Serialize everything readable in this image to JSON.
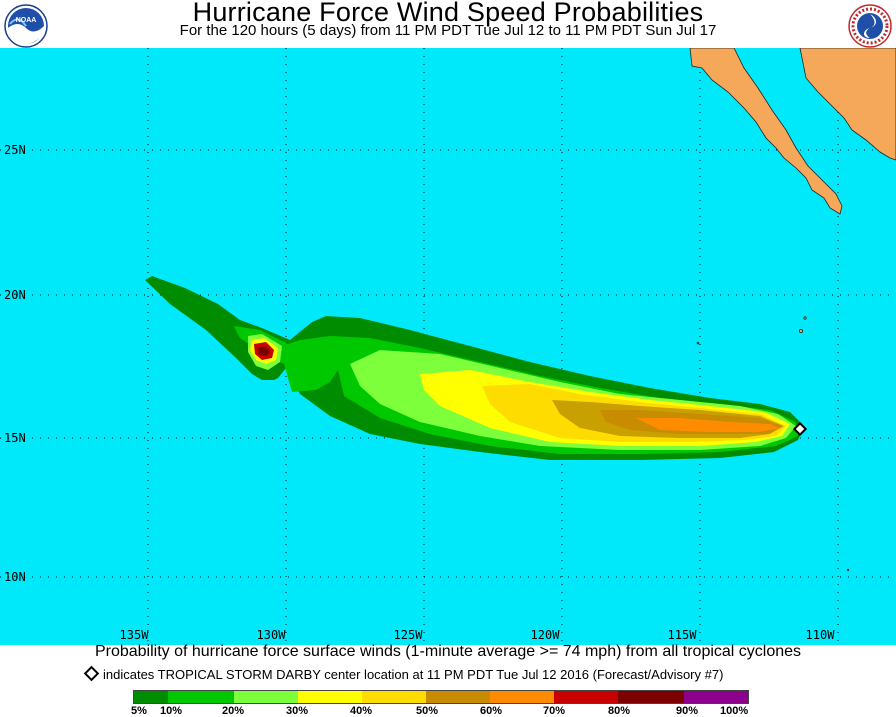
{
  "header": {
    "title": "Hurricane Force Wind Speed Probabilities",
    "subtitle": "For the 120 hours (5 days) from 11 PM PDT Tue Jul 12 to 11 PM PDT Sun Jul 17",
    "left_logo_text": "NOAA",
    "right_logo_text": "NATIONAL WEATHER SERVICE"
  },
  "map": {
    "ocean_color": "#00e9fb",
    "land_color": "#f5a75a",
    "lat_labels": [
      "25N",
      "20N",
      "15N",
      "10N"
    ],
    "lon_labels": [
      "135W",
      "130W",
      "125W",
      "120W",
      "115W",
      "110W"
    ],
    "storm_marker_icon": "diamond-icon"
  },
  "footer": {
    "caption": "Probability of hurricane force surface winds (1-minute average >= 74 mph) from all tropical cyclones",
    "note": "indicates TROPICAL STORM DARBY center location at 11 PM PDT Tue Jul 12 2016 (Forecast/Advisory #7)"
  },
  "legend": {
    "colors": [
      "#008c00",
      "#00c800",
      "#7dff3c",
      "#ffff00",
      "#ffdc00",
      "#c88c00",
      "#ff8c00",
      "#c80000",
      "#7d0000",
      "#8c008c"
    ],
    "labels": [
      "5%",
      "10%",
      "20%",
      "30%",
      "40%",
      "50%",
      "60%",
      "70%",
      "80%",
      "90%",
      "100%"
    ]
  }
}
